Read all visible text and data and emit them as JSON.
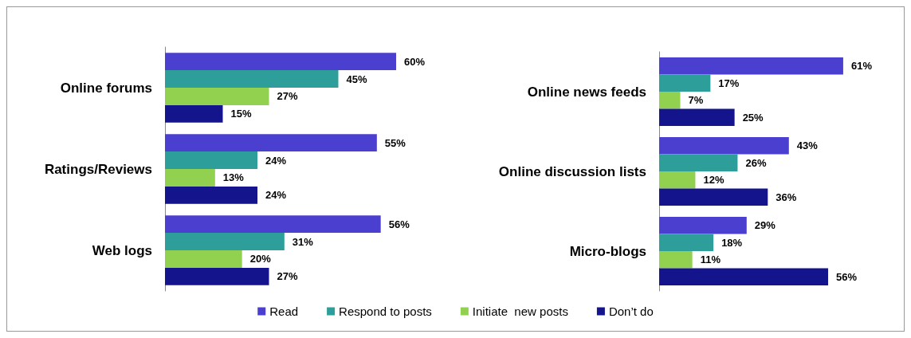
{
  "chart_data": [
    {
      "type": "bar",
      "orientation": "horizontal",
      "categories": [
        "Online forums",
        "Ratings/Reviews",
        "Web logs"
      ],
      "legend": "bottom",
      "series": [
        {
          "name": "Read",
          "color": "#4b3fcf",
          "values": [
            60,
            55,
            56
          ],
          "value_labels": [
            "60%",
            "55%",
            "56%"
          ]
        },
        {
          "name": "Respond to posts",
          "color": "#2e9e9a",
          "values": [
            45,
            24,
            31
          ],
          "value_labels": [
            "45%",
            "24%",
            "31%"
          ]
        },
        {
          "name": "Initiate  new posts",
          "color": "#92d050",
          "values": [
            27,
            13,
            20
          ],
          "value_labels": [
            "27%",
            "13%",
            "20%"
          ]
        },
        {
          "name": "Don’t do",
          "color": "#14148c",
          "values": [
            15,
            24,
            27
          ],
          "value_labels": [
            "15%",
            "24%",
            "27%"
          ]
        }
      ]
    },
    {
      "type": "bar",
      "orientation": "horizontal",
      "categories": [
        "Online news feeds",
        "Online discussion lists",
        "Micro-blogs"
      ],
      "legend": false,
      "series": [
        {
          "color": "#4b3fcf",
          "values": [
            61,
            43,
            29
          ],
          "value_labels": [
            "61%",
            "43%",
            "29%"
          ]
        },
        {
          "color": "#2e9e9a",
          "values": [
            17,
            26,
            18
          ],
          "value_labels": [
            "17%",
            "26%",
            "18%"
          ]
        },
        {
          "color": "#92d050",
          "values": [
            7,
            12,
            11
          ],
          "value_labels": [
            "7%",
            "12%",
            "11%"
          ]
        },
        {
          "color": "#14148c",
          "values": [
            25,
            36,
            56
          ],
          "value_labels": [
            "25%",
            "36%",
            "56%"
          ]
        }
      ]
    }
  ]
}
